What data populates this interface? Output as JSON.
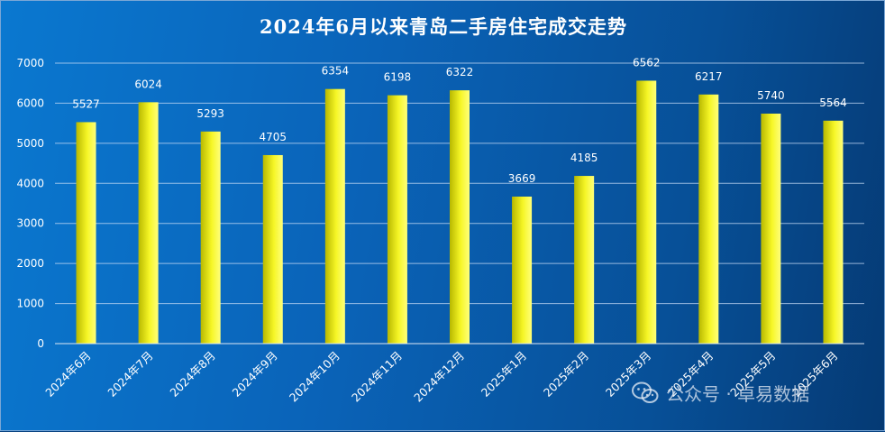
{
  "chart_data": {
    "type": "bar",
    "title": "2024年6月以来青岛二手房住宅成交走势",
    "categories": [
      "2024年6月",
      "2024年7月",
      "2024年8月",
      "2024年9月",
      "2024年10月",
      "2024年11月",
      "2024年12月",
      "2025年1月",
      "2025年2月",
      "2025年3月",
      "2025年4月",
      "2025年5月",
      "2025年6月"
    ],
    "values": [
      5527,
      6024,
      5293,
      4705,
      6354,
      6198,
      6322,
      3669,
      4185,
      6562,
      6217,
      5740,
      5564
    ],
    "ylim": [
      0,
      7000
    ],
    "yticks": [
      0,
      1000,
      2000,
      3000,
      4000,
      5000,
      6000,
      7000
    ],
    "xlabel": "",
    "ylabel": "",
    "grid": true,
    "legend": "none",
    "data_labels": true,
    "bar_color": "#e8e81a",
    "background": "#0a63b8"
  },
  "watermark": {
    "icon": "wechat-icon",
    "text": "公众号 · 卓易数据"
  }
}
